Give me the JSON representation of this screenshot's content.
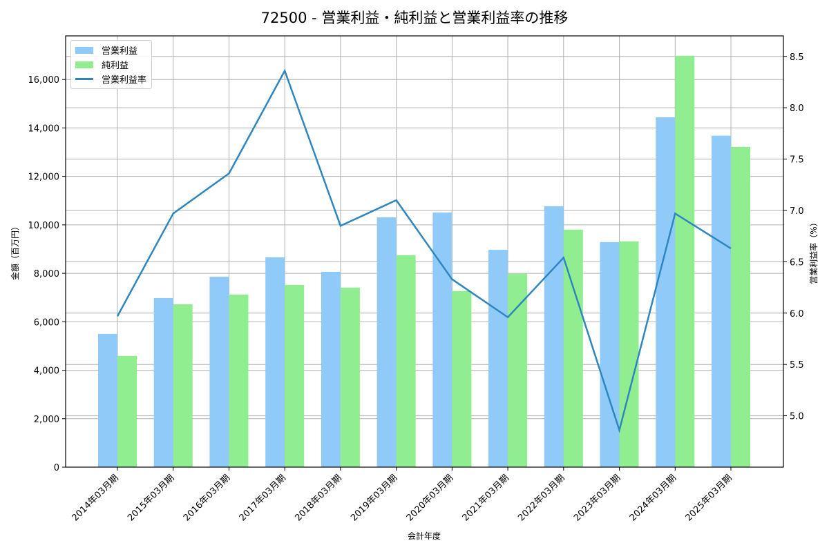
{
  "title": "72500 - 営業利益・純利益と営業利益率の推移",
  "legend": {
    "items": [
      {
        "label": "営業利益",
        "color": "#90CAF9",
        "kind": "bar"
      },
      {
        "label": "純利益",
        "color": "#90EE90",
        "kind": "bar"
      },
      {
        "label": "営業利益率",
        "color": "#2E86C1",
        "kind": "line"
      }
    ]
  },
  "axes": {
    "xlabel": "会計年度",
    "ylabel_left": "金額（百万円）",
    "ylabel_right": "営業利益率（%）",
    "left_ticks": [
      "0",
      "2,000",
      "4,000",
      "6,000",
      "8,000",
      "10,000",
      "12,000",
      "14,000",
      "16,000"
    ],
    "right_ticks": [
      "5.0",
      "5.5",
      "6.0",
      "6.5",
      "7.0",
      "7.5",
      "8.0",
      "8.5"
    ]
  },
  "chart_data": {
    "type": "bar",
    "title": "72500 - 営業利益・純利益と営業利益率の推移",
    "xlabel": "会計年度",
    "ylabel": "金額（百万円）",
    "ylabel_right": "営業利益率（%）",
    "categories": [
      "2014年03月期",
      "2015年03月期",
      "2016年03月期",
      "2017年03月期",
      "2018年03月期",
      "2019年03月期",
      "2020年03月期",
      "2021年03月期",
      "2022年03月期",
      "2023年03月期",
      "2024年03月期",
      "2025年03月期"
    ],
    "series": [
      {
        "name": "営業利益",
        "type": "bar",
        "axis": "left",
        "color": "#90CAF9",
        "values": [
          5500,
          6980,
          7860,
          8660,
          8060,
          10310,
          10510,
          8970,
          10770,
          9290,
          14440,
          13680
        ]
      },
      {
        "name": "純利益",
        "type": "bar",
        "axis": "left",
        "color": "#90EE90",
        "values": [
          4590,
          6720,
          7120,
          7520,
          7410,
          8750,
          7270,
          7980,
          9800,
          9320,
          16980,
          13220
        ]
      },
      {
        "name": "営業利益率",
        "type": "line",
        "axis": "right",
        "color": "#2E86C1",
        "values": [
          5.97,
          6.97,
          7.36,
          8.36,
          6.85,
          7.1,
          6.33,
          5.96,
          6.54,
          4.86,
          6.97,
          6.63
        ]
      }
    ],
    "ylim": [
      0,
      17800
    ],
    "ylim_right": [
      4.5,
      8.7
    ],
    "grid": true,
    "legend_position": "upper left"
  }
}
